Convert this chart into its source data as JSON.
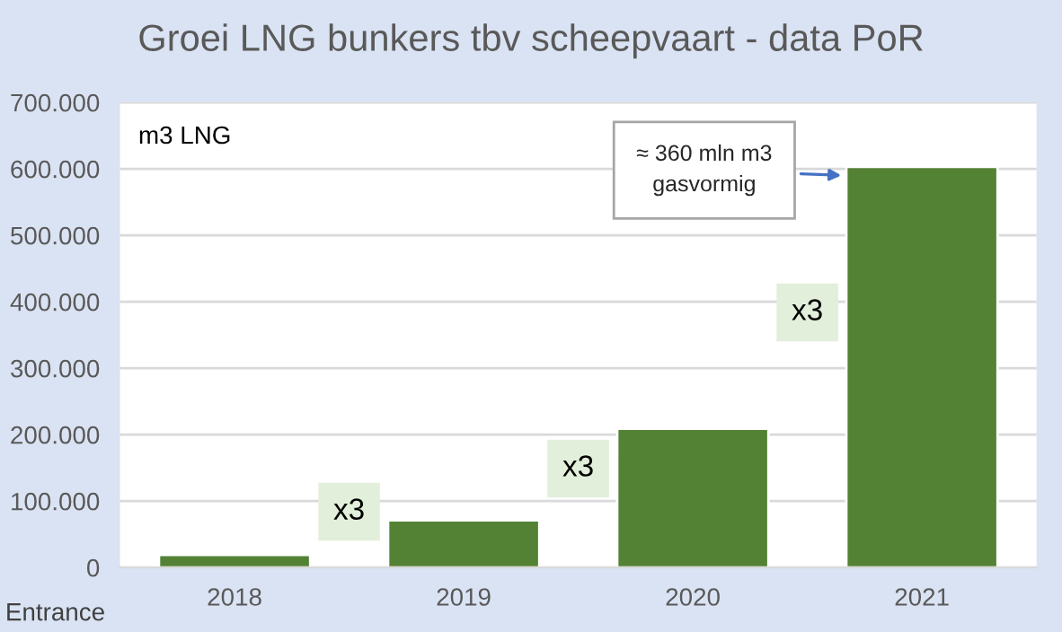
{
  "chart_data": {
    "type": "bar",
    "title": "Groei LNG bunkers tbv scheepvaart - data PoR",
    "categories": [
      "2018",
      "2019",
      "2020",
      "2021"
    ],
    "values": [
      19000,
      71000,
      209000,
      603000
    ],
    "color": "#548235",
    "ylim": [
      0,
      700000
    ],
    "yticks": [
      {
        "value": 0,
        "label": "0"
      },
      {
        "value": 100000,
        "label": "100.000"
      },
      {
        "value": 200000,
        "label": "200.000"
      },
      {
        "value": 300000,
        "label": "300.000"
      },
      {
        "value": 400000,
        "label": "400.000"
      },
      {
        "value": 500000,
        "label": "500.000"
      },
      {
        "value": 600000,
        "label": "600.000"
      },
      {
        "value": 700000,
        "label": "700.000"
      }
    ],
    "grid": "y",
    "annotations": [
      "m3 LNG",
      "≈ 360 mln m3\ngasvormig",
      "x3",
      "x3",
      "x3",
      "Entrance"
    ]
  }
}
